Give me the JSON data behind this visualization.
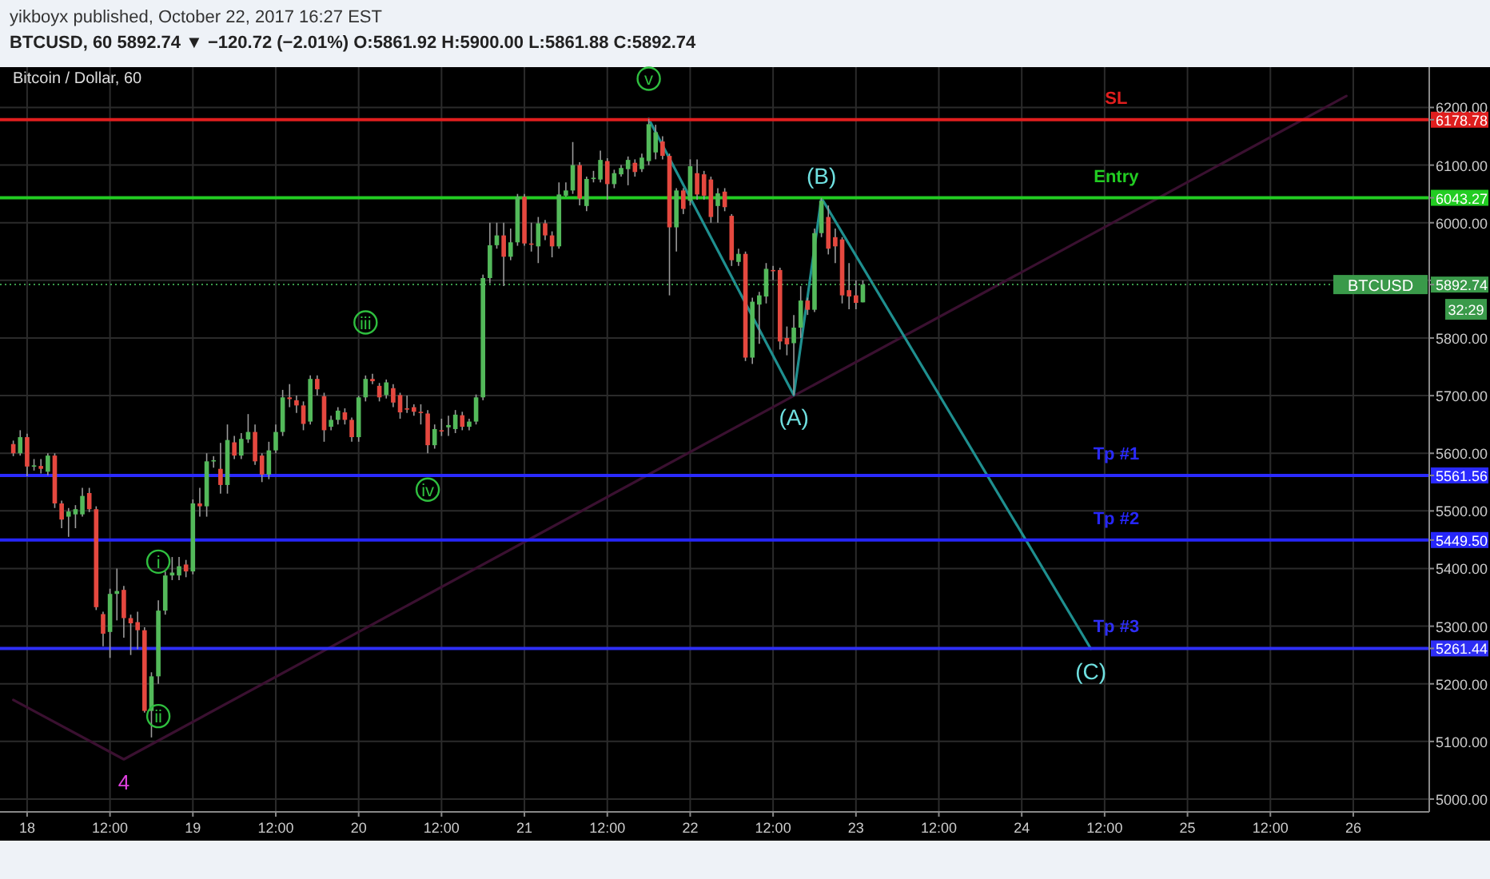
{
  "chart_data": {
    "type": "candlestick",
    "title": "BTCUSD, 60 5892.74 ▼ −120.72 (−2.01%) O:5861.92 H:5900.00 L:5861.88 C:5892.74",
    "subtitle": "Bitcoin / Dollar, 60",
    "x": [
      "2017-10-17T22:00",
      "2017-10-17T23:00",
      "2017-10-18T00:00",
      "2017-10-18T01:00",
      "2017-10-18T02:00",
      "2017-10-18T03:00",
      "2017-10-18T04:00",
      "2017-10-18T05:00",
      "2017-10-18T06:00",
      "2017-10-18T07:00",
      "2017-10-18T08:00",
      "2017-10-18T09:00",
      "2017-10-18T10:00",
      "2017-10-18T11:00",
      "2017-10-18T12:00",
      "2017-10-18T13:00",
      "2017-10-18T14:00",
      "2017-10-18T15:00",
      "2017-10-18T16:00",
      "2017-10-18T17:00",
      "2017-10-18T18:00",
      "2017-10-18T19:00",
      "2017-10-18T20:00",
      "2017-10-18T21:00",
      "2017-10-18T22:00",
      "2017-10-18T23:00",
      "2017-10-19T00:00",
      "2017-10-19T01:00",
      "2017-10-19T02:00",
      "2017-10-19T03:00",
      "2017-10-19T04:00",
      "2017-10-19T05:00",
      "2017-10-19T06:00",
      "2017-10-19T07:00",
      "2017-10-19T08:00",
      "2017-10-19T09:00",
      "2017-10-19T10:00",
      "2017-10-19T11:00",
      "2017-10-19T12:00",
      "2017-10-19T13:00",
      "2017-10-19T14:00",
      "2017-10-19T15:00",
      "2017-10-19T16:00",
      "2017-10-19T17:00",
      "2017-10-19T18:00",
      "2017-10-19T19:00",
      "2017-10-19T20:00",
      "2017-10-19T21:00",
      "2017-10-19T22:00",
      "2017-10-19T23:00",
      "2017-10-20T00:00",
      "2017-10-20T01:00",
      "2017-10-20T02:00",
      "2017-10-20T03:00",
      "2017-10-20T04:00",
      "2017-10-20T05:00",
      "2017-10-20T06:00",
      "2017-10-20T07:00",
      "2017-10-20T08:00",
      "2017-10-20T09:00",
      "2017-10-20T10:00",
      "2017-10-20T11:00",
      "2017-10-20T12:00",
      "2017-10-20T13:00",
      "2017-10-20T14:00",
      "2017-10-20T15:00",
      "2017-10-20T16:00",
      "2017-10-20T17:00",
      "2017-10-20T18:00",
      "2017-10-20T19:00",
      "2017-10-20T20:00",
      "2017-10-20T21:00",
      "2017-10-20T22:00",
      "2017-10-20T23:00",
      "2017-10-21T00:00",
      "2017-10-21T01:00",
      "2017-10-21T02:00",
      "2017-10-21T03:00",
      "2017-10-21T04:00",
      "2017-10-21T05:00",
      "2017-10-21T06:00",
      "2017-10-21T07:00",
      "2017-10-21T08:00",
      "2017-10-21T09:00",
      "2017-10-21T10:00",
      "2017-10-21T11:00",
      "2017-10-21T12:00",
      "2017-10-21T13:00",
      "2017-10-21T14:00",
      "2017-10-21T15:00",
      "2017-10-21T16:00",
      "2017-10-21T17:00",
      "2017-10-21T18:00",
      "2017-10-21T19:00",
      "2017-10-21T20:00",
      "2017-10-21T21:00",
      "2017-10-21T22:00",
      "2017-10-21T23:00",
      "2017-10-22T00:00",
      "2017-10-22T01:00",
      "2017-10-22T02:00",
      "2017-10-22T03:00",
      "2017-10-22T04:00",
      "2017-10-22T05:00",
      "2017-10-22T06:00",
      "2017-10-22T07:00",
      "2017-10-22T08:00",
      "2017-10-22T09:00",
      "2017-10-22T10:00",
      "2017-10-22T11:00",
      "2017-10-22T12:00",
      "2017-10-22T13:00",
      "2017-10-22T14:00",
      "2017-10-22T15:00",
      "2017-10-22T16:00",
      "2017-10-22T17:00",
      "2017-10-22T18:00",
      "2017-10-22T19:00",
      "2017-10-22T20:00",
      "2017-10-22T21:00",
      "2017-10-22T22:00",
      "2017-10-22T23:00",
      "2017-10-23T00:00",
      "2017-10-23T01:00"
    ],
    "ohlc": [
      [
        5616,
        5622,
        5595,
        5600
      ],
      [
        5600,
        5640,
        5596,
        5628
      ],
      [
        5628,
        5634,
        5560,
        5577
      ],
      [
        5577,
        5590,
        5570,
        5579
      ],
      [
        5578,
        5590,
        5565,
        5573
      ],
      [
        5568,
        5600,
        5562,
        5596
      ],
      [
        5596,
        5600,
        5505,
        5513
      ],
      [
        5513,
        5518,
        5470,
        5485
      ],
      [
        5490,
        5505,
        5455,
        5499
      ],
      [
        5494,
        5510,
        5470,
        5503
      ],
      [
        5494,
        5540,
        5490,
        5526
      ],
      [
        5531,
        5540,
        5498,
        5503
      ],
      [
        5503,
        5508,
        5328,
        5333
      ],
      [
        5321,
        5325,
        5265,
        5287
      ],
      [
        5290,
        5365,
        5245,
        5356
      ],
      [
        5356,
        5400,
        5310,
        5361
      ],
      [
        5363,
        5370,
        5280,
        5314
      ],
      [
        5314,
        5320,
        5250,
        5305
      ],
      [
        5307,
        5325,
        5260,
        5293
      ],
      [
        5293,
        5298,
        5150,
        5153
      ],
      [
        5153,
        5220,
        5107,
        5213
      ],
      [
        5213,
        5345,
        5200,
        5327
      ],
      [
        5327,
        5395,
        5320,
        5388
      ],
      [
        5388,
        5420,
        5380,
        5393
      ],
      [
        5388,
        5420,
        5380,
        5404
      ],
      [
        5407,
        5415,
        5385,
        5395
      ],
      [
        5395,
        5520,
        5390,
        5513
      ],
      [
        5513,
        5540,
        5490,
        5508
      ],
      [
        5508,
        5600,
        5490,
        5586
      ],
      [
        5586,
        5595,
        5575,
        5588
      ],
      [
        5573,
        5618,
        5530,
        5545
      ],
      [
        5545,
        5650,
        5530,
        5623
      ],
      [
        5619,
        5630,
        5590,
        5596
      ],
      [
        5596,
        5635,
        5590,
        5625
      ],
      [
        5624,
        5668,
        5618,
        5637
      ],
      [
        5637,
        5650,
        5580,
        5586
      ],
      [
        5596,
        5600,
        5550,
        5563
      ],
      [
        5563,
        5620,
        5555,
        5605
      ],
      [
        5605,
        5650,
        5600,
        5637
      ],
      [
        5637,
        5710,
        5630,
        5697
      ],
      [
        5697,
        5720,
        5680,
        5694
      ],
      [
        5692,
        5700,
        5670,
        5683
      ],
      [
        5683,
        5690,
        5640,
        5651
      ],
      [
        5655,
        5735,
        5650,
        5729
      ],
      [
        5729,
        5735,
        5700,
        5711
      ],
      [
        5699,
        5705,
        5620,
        5640
      ],
      [
        5646,
        5665,
        5640,
        5658
      ],
      [
        5658,
        5680,
        5650,
        5674
      ],
      [
        5671,
        5678,
        5650,
        5658
      ],
      [
        5658,
        5662,
        5620,
        5628
      ],
      [
        5628,
        5700,
        5620,
        5697
      ],
      [
        5697,
        5735,
        5690,
        5729
      ],
      [
        5729,
        5738,
        5720,
        5725
      ],
      [
        5717,
        5722,
        5690,
        5697
      ],
      [
        5701,
        5728,
        5695,
        5723
      ],
      [
        5713,
        5720,
        5680,
        5688
      ],
      [
        5701,
        5705,
        5660,
        5671
      ],
      [
        5678,
        5700,
        5670,
        5676
      ],
      [
        5680,
        5685,
        5665,
        5672
      ],
      [
        5672,
        5685,
        5650,
        5670
      ],
      [
        5669,
        5675,
        5600,
        5614
      ],
      [
        5614,
        5650,
        5608,
        5642
      ],
      [
        5640,
        5660,
        5630,
        5639
      ],
      [
        5645,
        5665,
        5630,
        5649
      ],
      [
        5642,
        5675,
        5635,
        5667
      ],
      [
        5666,
        5672,
        5640,
        5646
      ],
      [
        5646,
        5660,
        5640,
        5655
      ],
      [
        5655,
        5702,
        5650,
        5697
      ],
      [
        5697,
        5910,
        5692,
        5904
      ],
      [
        5904,
        6000,
        5895,
        5961
      ],
      [
        5961,
        6000,
        5955,
        5978
      ],
      [
        5978,
        6000,
        5890,
        5941
      ],
      [
        5941,
        5990,
        5935,
        5966
      ],
      [
        5966,
        6050,
        5960,
        6045
      ],
      [
        6045,
        6050,
        5960,
        5964
      ],
      [
        5964,
        6000,
        5950,
        5962
      ],
      [
        5959,
        6010,
        5930,
        5999
      ],
      [
        5999,
        6005,
        5970,
        5978
      ],
      [
        5978,
        5985,
        5940,
        5959
      ],
      [
        5959,
        6070,
        5955,
        6049
      ],
      [
        6047,
        6070,
        6045,
        6056
      ],
      [
        6056,
        6140,
        6050,
        6100
      ],
      [
        6100,
        6105,
        6030,
        6042
      ],
      [
        6029,
        6080,
        6020,
        6076
      ],
      [
        6076,
        6090,
        6070,
        6078
      ],
      [
        6075,
        6125,
        6070,
        6109
      ],
      [
        6107,
        6112,
        6040,
        6067
      ],
      [
        6067,
        6092,
        6060,
        6086
      ],
      [
        6084,
        6100,
        6080,
        6095
      ],
      [
        6093,
        6115,
        6065,
        6109
      ],
      [
        6104,
        6110,
        6080,
        6088
      ],
      [
        6093,
        6120,
        6088,
        6113
      ],
      [
        6107,
        6180,
        6100,
        6171
      ],
      [
        6122,
        6170,
        6110,
        6157
      ],
      [
        6141,
        6150,
        6110,
        6116
      ],
      [
        6116,
        6120,
        5874,
        5992
      ],
      [
        5992,
        6060,
        5950,
        6056
      ],
      [
        6056,
        6060,
        6015,
        6024
      ],
      [
        6038,
        6110,
        6030,
        6098
      ],
      [
        6086,
        6110,
        6040,
        6049
      ],
      [
        6084,
        6090,
        6040,
        6047
      ],
      [
        6075,
        6080,
        6000,
        6010
      ],
      [
        6029,
        6060,
        6000,
        6051
      ],
      [
        6054,
        6060,
        6020,
        6027
      ],
      [
        6012,
        6015,
        5925,
        5935
      ],
      [
        5932,
        5955,
        5925,
        5946
      ],
      [
        5946,
        5950,
        5760,
        5766
      ],
      [
        5766,
        5870,
        5755,
        5863
      ],
      [
        5858,
        5880,
        5790,
        5874
      ],
      [
        5872,
        5930,
        5860,
        5920
      ],
      [
        5918,
        5925,
        5900,
        5916
      ],
      [
        5918,
        5922,
        5780,
        5794
      ],
      [
        5800,
        5820,
        5770,
        5789
      ],
      [
        5791,
        5840,
        5701,
        5818
      ],
      [
        5818,
        5890,
        5800,
        5865
      ],
      [
        5865,
        5870,
        5840,
        5849
      ],
      [
        5849,
        5990,
        5845,
        5982
      ],
      [
        5982,
        6043,
        5975,
        6038
      ],
      [
        6010,
        6030,
        5945,
        5955
      ],
      [
        5975,
        5990,
        5930,
        5959
      ],
      [
        5971,
        5975,
        5860,
        5874
      ],
      [
        5883,
        5930,
        5850,
        5872
      ],
      [
        5874,
        5900,
        5850,
        5861
      ],
      [
        5861.92,
        5900,
        5861.88,
        5892.74
      ]
    ],
    "series": [
      {
        "type": "line",
        "color": "#3a1030",
        "x": [
          "2017-10-17T22:00",
          "2017-10-18T14:00",
          "2017-10-25T23:00"
        ],
        "values": [
          5172,
          5069,
          6220
        ]
      },
      {
        "type": "line",
        "color": "#1f8f8f",
        "x": [
          "2017-10-21T18:00",
          "2017-10-22T15:00",
          "2017-10-22T19:00",
          "2017-10-24T10:00"
        ],
        "values": [
          6180,
          5701,
          6043,
          5261
        ]
      }
    ],
    "xlim": [
      "2017-10-17T21:00",
      "2017-10-26T11:00"
    ],
    "xticks": [
      {
        "value": "2017-10-18",
        "label": "18"
      },
      {
        "value": "2017-10-18T12:00",
        "label": "12:00"
      },
      {
        "value": "2017-10-19",
        "label": "19"
      },
      {
        "value": "2017-10-19T12:00",
        "label": "12:00"
      },
      {
        "value": "2017-10-20",
        "label": "20"
      },
      {
        "value": "2017-10-20T12:00",
        "label": "12:00"
      },
      {
        "value": "2017-10-21",
        "label": "21"
      },
      {
        "value": "2017-10-21T12:00",
        "label": "12:00"
      },
      {
        "value": "2017-10-22",
        "label": "22"
      },
      {
        "value": "2017-10-22T12:00",
        "label": "12:00"
      },
      {
        "value": "2017-10-23",
        "label": "23"
      },
      {
        "value": "2017-10-23T12:00",
        "label": "12:00"
      },
      {
        "value": "2017-10-24",
        "label": "24"
      },
      {
        "value": "2017-10-24T12:00",
        "label": "12:00"
      },
      {
        "value": "2017-10-25",
        "label": "25"
      },
      {
        "value": "2017-10-25T12:00",
        "label": "12:00"
      },
      {
        "value": "2017-10-26",
        "label": "26"
      }
    ],
    "ylim": [
      5000,
      6270
    ],
    "yticks": [
      {
        "value": 5000,
        "label": "5000.00"
      },
      {
        "value": 5100,
        "label": "5100.00"
      },
      {
        "value": 5200,
        "label": "5200.00"
      },
      {
        "value": 5300,
        "label": "5300.00"
      },
      {
        "value": 5400,
        "label": "5400.00"
      },
      {
        "value": 5500,
        "label": "5500.00"
      },
      {
        "value": 5600,
        "label": "5600.00"
      },
      {
        "value": 5700,
        "label": "5700.00"
      },
      {
        "value": 5800,
        "label": "5800.00"
      },
      {
        "value": 5900,
        "label": null
      },
      {
        "value": 5892.74,
        "label": "5892.74"
      },
      {
        "value": 5561.56,
        "label": "5561.56"
      },
      {
        "value": 5449.5,
        "label": "5449.50"
      },
      {
        "value": 5261.44,
        "label": "5261.44"
      },
      {
        "value": 6043.27,
        "label": "6043.27"
      },
      {
        "value": 6178.78,
        "label": "6178.78"
      },
      {
        "value": 6000,
        "label": "6000.00"
      },
      {
        "value": 6100,
        "label": "6100.00"
      },
      {
        "value": 6200,
        "label": "6200.00"
      }
    ],
    "grid": true,
    "ref_lines": [
      {
        "axis": "y",
        "value": 6178.78,
        "label": "SL",
        "color": "#e01e1e"
      },
      {
        "axis": "y",
        "value": 6043.27,
        "label": "Entry",
        "color": "#22cc22"
      },
      {
        "axis": "y",
        "value": 5892.74,
        "label": "BTCUSD",
        "color": "#3a9a4a",
        "line_style": "dotted"
      },
      {
        "axis": "y",
        "value": 5561.56,
        "label": "Tp #1",
        "color": "#2a2aff"
      },
      {
        "axis": "y",
        "value": 5449.5,
        "label": "Tp #2",
        "color": "#2626fa"
      },
      {
        "axis": "y",
        "value": 5261.44,
        "label": "Tp #3",
        "color": "#2e2ef5"
      }
    ],
    "annotations": [
      "yikboyx published, October 22, 2017 16:27 EST",
      "32:29",
      {
        "text": "i",
        "x": "2017-10-18T19:00",
        "y": 5412
      },
      {
        "text": "ii",
        "x": "2017-10-18T19:00",
        "y": 5144
      },
      {
        "text": "iii",
        "x": "2017-10-20T01:00",
        "y": 5827
      },
      {
        "text": "iv",
        "x": "2017-10-20T10:00",
        "y": 5537
      },
      {
        "text": "v",
        "x": "2017-10-21T18:00",
        "y": 6250
      },
      {
        "text": "(A)",
        "x": "2017-10-22T15:00",
        "y": 5701
      },
      {
        "text": "(B)",
        "x": "2017-10-22T19:00",
        "y": 6043
      },
      {
        "text": "(C)",
        "x": "2017-10-24T10:00",
        "y": 5261
      },
      {
        "text": "4",
        "x": "2017-10-18T14:00",
        "y": 5069
      }
    ]
  }
}
